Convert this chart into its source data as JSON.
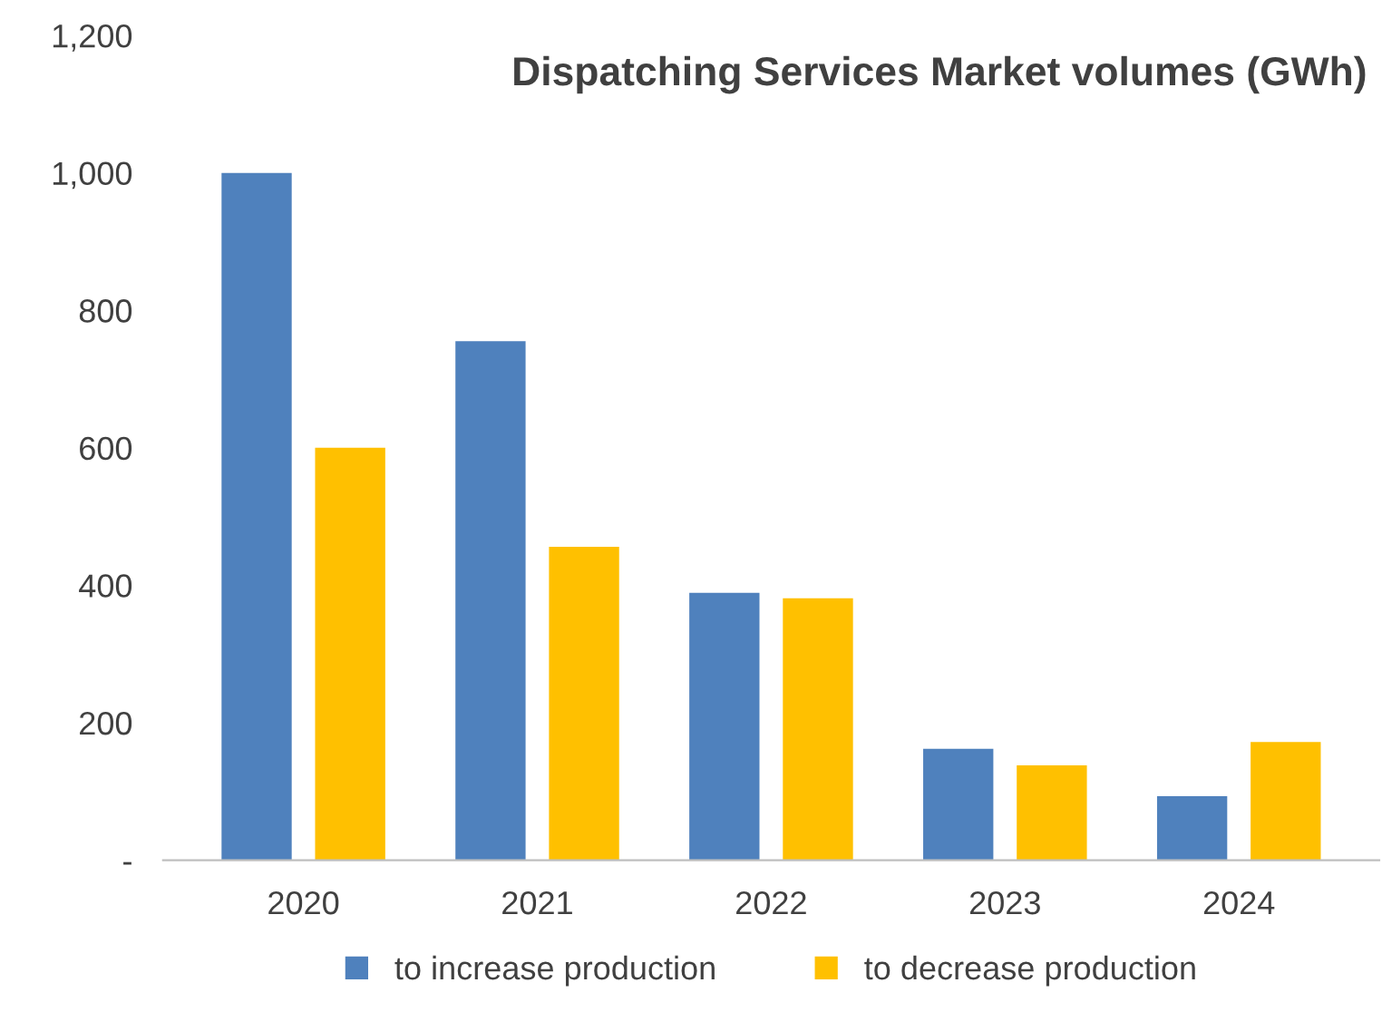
{
  "chart_data": {
    "type": "bar",
    "title": "Dispatching Services Market volumes (GWh)",
    "categories": [
      "2020",
      "2021",
      "2022",
      "2023",
      "2024"
    ],
    "series": [
      {
        "name": "to increase production",
        "color": "#4f81bd",
        "values": [
          1000,
          755,
          389,
          162,
          93
        ]
      },
      {
        "name": "to decrease production",
        "color": "#ffc000",
        "values": [
          600,
          456,
          381,
          138,
          172
        ]
      }
    ],
    "ylim": [
      0,
      1200
    ],
    "yticks": [
      {
        "value": 0,
        "label": "-"
      },
      200,
      400,
      600,
      800,
      {
        "value": 1000,
        "label": "1,000"
      },
      {
        "value": 1200,
        "label": "1,200"
      }
    ],
    "grid": false,
    "legend": "bottom"
  }
}
